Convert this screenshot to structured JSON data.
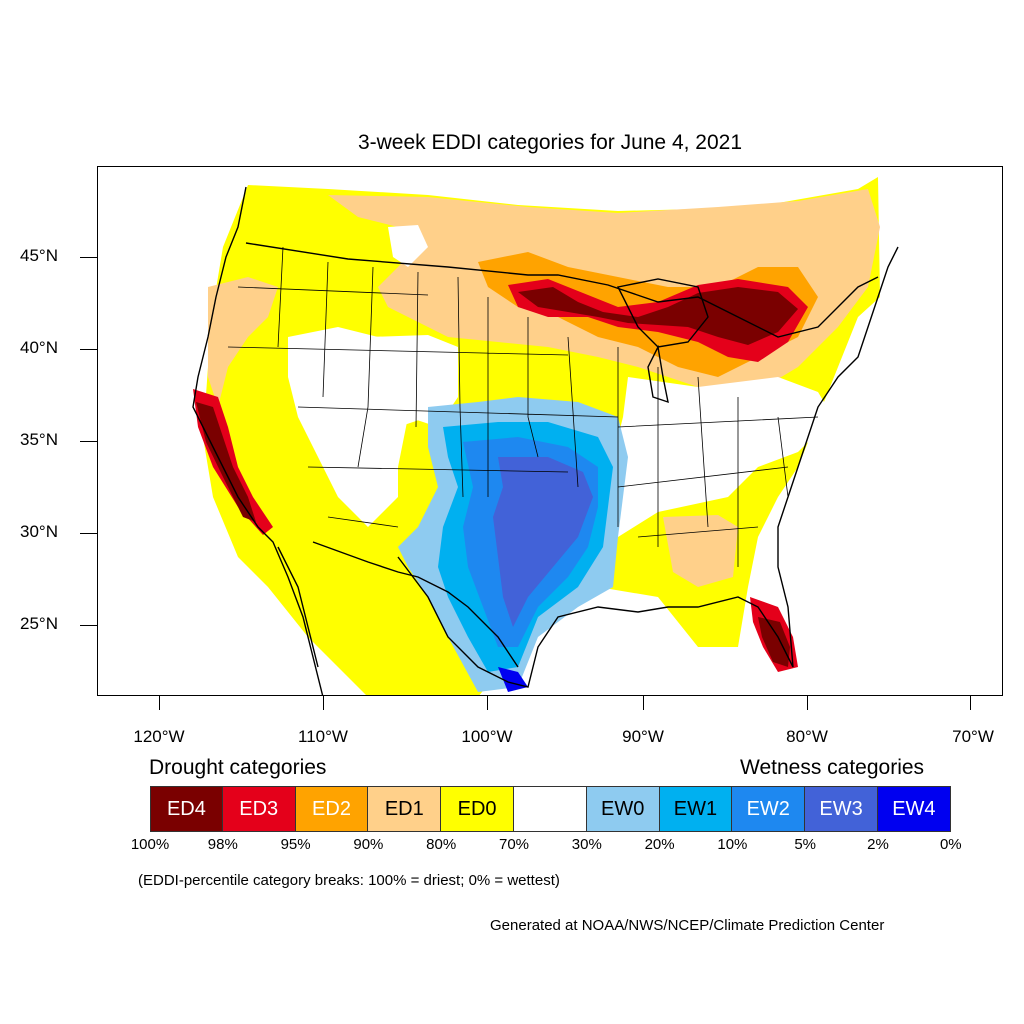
{
  "title": "3-week EDDI categories for June 4, 2021",
  "lat_labels": [
    "45°N",
    "40°N",
    "35°N",
    "30°N",
    "25°N"
  ],
  "lon_labels": [
    "120°W",
    "110°W",
    "100°W",
    "90°W",
    "80°W",
    "70°W"
  ],
  "legend": {
    "drought_heading": "Drought categories",
    "wetness_heading": "Wetness categories",
    "categories": [
      {
        "label": "ED4",
        "color": "#7a0000",
        "text_color": "#ffffff"
      },
      {
        "label": "ED3",
        "color": "#e4001a",
        "text_color": "#ffffff"
      },
      {
        "label": "ED2",
        "color": "#ffa300",
        "text_color": "#ffffff"
      },
      {
        "label": "ED1",
        "color": "#ffd08a",
        "text_color": "#000000"
      },
      {
        "label": "ED0",
        "color": "#ffff00",
        "text_color": "#000000"
      },
      {
        "label": "",
        "color": "#ffffff",
        "text_color": "#000000"
      },
      {
        "label": "EW0",
        "color": "#8ecbf0",
        "text_color": "#000000"
      },
      {
        "label": "EW1",
        "color": "#00b0f0",
        "text_color": "#000000"
      },
      {
        "label": "EW2",
        "color": "#1e88f0",
        "text_color": "#ffffff"
      },
      {
        "label": "EW3",
        "color": "#4262d8",
        "text_color": "#ffffff"
      },
      {
        "label": "EW4",
        "color": "#0000f0",
        "text_color": "#ffffff"
      }
    ],
    "breaks": [
      "100%",
      "98%",
      "95%",
      "90%",
      "80%",
      "70%",
      "30%",
      "20%",
      "10%",
      "5%",
      "2%",
      "0%"
    ]
  },
  "note": "(EDDI-percentile category breaks: 100% = driest; 0% = wettest)",
  "credit": "Generated at NOAA/NWS/NCEP/Climate Prediction Center"
}
